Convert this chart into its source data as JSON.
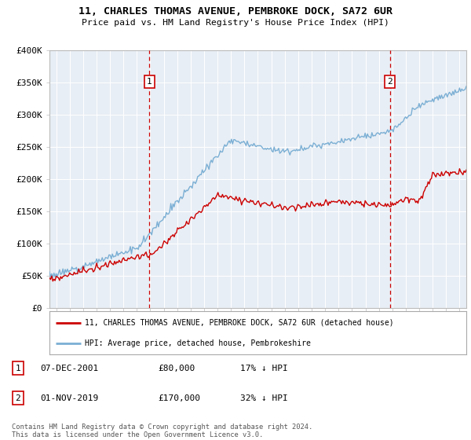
{
  "title": "11, CHARLES THOMAS AVENUE, PEMBROKE DOCK, SA72 6UR",
  "subtitle": "Price paid vs. HM Land Registry's House Price Index (HPI)",
  "line1_label": "11, CHARLES THOMAS AVENUE, PEMBROKE DOCK, SA72 6UR (detached house)",
  "line2_label": "HPI: Average price, detached house, Pembrokeshire",
  "line1_color": "#cc0000",
  "line2_color": "#7bafd4",
  "plot_bg": "#e8eef5",
  "ylim": [
    0,
    400000
  ],
  "yticks": [
    0,
    50000,
    100000,
    150000,
    200000,
    250000,
    300000,
    350000,
    400000
  ],
  "ytick_labels": [
    "£0",
    "£50K",
    "£100K",
    "£150K",
    "£200K",
    "£250K",
    "£300K",
    "£350K",
    "£400K"
  ],
  "events": [
    {
      "id": 1,
      "date": "07-DEC-2001",
      "price": "£80,000",
      "note": "17% ↓ HPI",
      "x": 2001.92
    },
    {
      "id": 2,
      "date": "01-NOV-2019",
      "price": "£170,000",
      "note": "32% ↓ HPI",
      "x": 2019.83
    }
  ],
  "footer": "Contains HM Land Registry data © Crown copyright and database right 2024.\nThis data is licensed under the Open Government Licence v3.0.",
  "xmin": 1994.5,
  "xmax": 2025.5
}
